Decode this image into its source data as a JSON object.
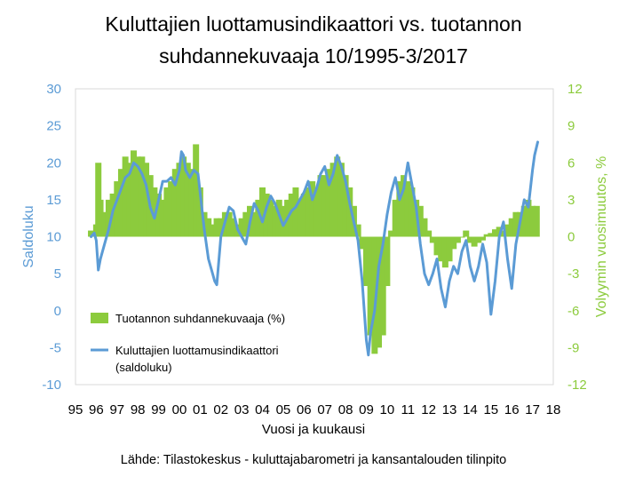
{
  "chart_data": {
    "type": "bar",
    "title_line1": "Kuluttajien luottamusindikaattori vs. tuotannon",
    "title_line2": "suhdannekuvaaja 10/1995-3/2017",
    "xlabel": "Vuosi ja kuukausi",
    "ylabel_left": "Saldoluku",
    "ylabel_right": "Volyymin vuosimuutos, %",
    "source": "Lähde: Tilastokeskus - kuluttajabarometri ja kansantalouden tilinpito",
    "x_ticks": [
      "95",
      "96",
      "97",
      "98",
      "99",
      "00",
      "01",
      "02",
      "03",
      "04",
      "05",
      "06",
      "07",
      "08",
      "09",
      "10",
      "11",
      "12",
      "13",
      "14",
      "15",
      "16",
      "17",
      "18"
    ],
    "y_left": {
      "min": -10,
      "max": 30,
      "ticks": [
        -10,
        -5,
        0,
        5,
        10,
        15,
        20,
        25,
        30
      ]
    },
    "y_right": {
      "min": -12,
      "max": 12,
      "ticks": [
        -12,
        -9,
        -6,
        -3,
        0,
        3,
        6,
        9,
        12
      ]
    },
    "legend_position": "center-left",
    "colors": {
      "bars": "#8CCB3D",
      "line": "#5B9BD5",
      "left_axis": "#5B9BD5",
      "right_axis": "#8CCB3D"
    },
    "series": [
      {
        "name": "Tuotannon suhdannekuvaaja (%)",
        "axis": "right",
        "kind": "bar",
        "points": [
          [
            1995.75,
            0.5
          ],
          [
            1996.0,
            1.0
          ],
          [
            1996.1,
            6.0
          ],
          [
            1996.2,
            3.0
          ],
          [
            1996.4,
            2.0
          ],
          [
            1996.6,
            3.0
          ],
          [
            1996.8,
            3.5
          ],
          [
            1997.0,
            4.5
          ],
          [
            1997.2,
            5.5
          ],
          [
            1997.4,
            6.5
          ],
          [
            1997.6,
            6.0
          ],
          [
            1997.8,
            7.0
          ],
          [
            1998.0,
            6.5
          ],
          [
            1998.2,
            6.5
          ],
          [
            1998.4,
            6.0
          ],
          [
            1998.6,
            5.0
          ],
          [
            1998.8,
            4.0
          ],
          [
            1999.0,
            3.5
          ],
          [
            1999.2,
            3.0
          ],
          [
            1999.4,
            4.0
          ],
          [
            1999.6,
            4.5
          ],
          [
            1999.8,
            5.5
          ],
          [
            2000.0,
            6.0
          ],
          [
            2000.2,
            6.5
          ],
          [
            2000.4,
            6.0
          ],
          [
            2000.6,
            5.5
          ],
          [
            2000.8,
            7.5
          ],
          [
            2001.0,
            4.0
          ],
          [
            2001.2,
            2.0
          ],
          [
            2001.4,
            1.5
          ],
          [
            2001.6,
            1.0
          ],
          [
            2001.8,
            1.5
          ],
          [
            2002.0,
            1.5
          ],
          [
            2002.2,
            2.0
          ],
          [
            2002.4,
            2.0
          ],
          [
            2002.6,
            1.5
          ],
          [
            2002.8,
            1.0
          ],
          [
            2003.0,
            1.5
          ],
          [
            2003.2,
            2.0
          ],
          [
            2003.4,
            2.5
          ],
          [
            2003.6,
            2.0
          ],
          [
            2003.8,
            3.0
          ],
          [
            2004.0,
            4.0
          ],
          [
            2004.2,
            3.5
          ],
          [
            2004.4,
            3.0
          ],
          [
            2004.6,
            2.5
          ],
          [
            2004.8,
            3.0
          ],
          [
            2005.0,
            2.5
          ],
          [
            2005.2,
            3.0
          ],
          [
            2005.4,
            3.5
          ],
          [
            2005.6,
            4.0
          ],
          [
            2005.8,
            3.0
          ],
          [
            2006.0,
            3.5
          ],
          [
            2006.2,
            4.0
          ],
          [
            2006.4,
            4.5
          ],
          [
            2006.6,
            4.0
          ],
          [
            2006.8,
            5.0
          ],
          [
            2007.0,
            5.0
          ],
          [
            2007.2,
            5.5
          ],
          [
            2007.4,
            6.0
          ],
          [
            2007.6,
            6.5
          ],
          [
            2007.8,
            6.0
          ],
          [
            2008.0,
            5.0
          ],
          [
            2008.2,
            4.0
          ],
          [
            2008.4,
            2.5
          ],
          [
            2008.6,
            1.0
          ],
          [
            2008.8,
            -1.0
          ],
          [
            2009.0,
            -4.0
          ],
          [
            2009.2,
            -8.0
          ],
          [
            2009.4,
            -9.5
          ],
          [
            2009.6,
            -9.0
          ],
          [
            2009.8,
            -8.0
          ],
          [
            2010.0,
            -4.0
          ],
          [
            2010.2,
            0.5
          ],
          [
            2010.4,
            3.0
          ],
          [
            2010.6,
            4.5
          ],
          [
            2010.8,
            5.0
          ],
          [
            2011.0,
            4.5
          ],
          [
            2011.2,
            4.0
          ],
          [
            2011.4,
            3.0
          ],
          [
            2011.6,
            2.5
          ],
          [
            2011.8,
            1.5
          ],
          [
            2012.0,
            0.5
          ],
          [
            2012.2,
            -0.5
          ],
          [
            2012.4,
            -1.5
          ],
          [
            2012.6,
            -2.0
          ],
          [
            2012.8,
            -2.5
          ],
          [
            2013.0,
            -2.0
          ],
          [
            2013.2,
            -1.0
          ],
          [
            2013.4,
            -0.5
          ],
          [
            2013.6,
            0.0
          ],
          [
            2013.8,
            0.5
          ],
          [
            2014.0,
            -0.5
          ],
          [
            2014.2,
            -0.8
          ],
          [
            2014.4,
            -0.5
          ],
          [
            2014.6,
            -0.3
          ],
          [
            2014.8,
            0.2
          ],
          [
            2015.0,
            0.3
          ],
          [
            2015.2,
            0.6
          ],
          [
            2015.4,
            0.8
          ],
          [
            2015.6,
            0.5
          ],
          [
            2015.8,
            1.0
          ],
          [
            2016.0,
            1.5
          ],
          [
            2016.2,
            2.0
          ],
          [
            2016.4,
            2.0
          ],
          [
            2016.6,
            2.5
          ],
          [
            2016.8,
            3.0
          ],
          [
            2017.0,
            2.5
          ],
          [
            2017.2,
            2.5
          ]
        ]
      },
      {
        "name": "Kuluttajien luottamusindikaattori (saldoluku)",
        "axis": "left",
        "kind": "line",
        "points": [
          [
            1995.75,
            10.0
          ],
          [
            1995.9,
            10.5
          ],
          [
            1996.0,
            9.5
          ],
          [
            1996.1,
            5.5
          ],
          [
            1996.2,
            7.0
          ],
          [
            1996.3,
            8.0
          ],
          [
            1996.4,
            9.0
          ],
          [
            1996.6,
            11.0
          ],
          [
            1996.8,
            13.5
          ],
          [
            1997.0,
            15.0
          ],
          [
            1997.2,
            16.5
          ],
          [
            1997.4,
            18.0
          ],
          [
            1997.6,
            18.5
          ],
          [
            1997.8,
            20.0
          ],
          [
            1998.0,
            19.5
          ],
          [
            1998.2,
            18.5
          ],
          [
            1998.4,
            17.0
          ],
          [
            1998.6,
            14.0
          ],
          [
            1998.8,
            12.5
          ],
          [
            1999.0,
            15.0
          ],
          [
            1999.2,
            17.5
          ],
          [
            1999.4,
            17.5
          ],
          [
            1999.6,
            18.0
          ],
          [
            1999.8,
            17.0
          ],
          [
            2000.0,
            19.0
          ],
          [
            2000.1,
            21.5
          ],
          [
            2000.2,
            21.0
          ],
          [
            2000.3,
            19.0
          ],
          [
            2000.5,
            18.0
          ],
          [
            2000.7,
            19.0
          ],
          [
            2000.9,
            18.5
          ],
          [
            2001.0,
            16.0
          ],
          [
            2001.2,
            11.0
          ],
          [
            2001.4,
            7.0
          ],
          [
            2001.6,
            5.0
          ],
          [
            2001.7,
            4.0
          ],
          [
            2001.8,
            3.5
          ],
          [
            2002.0,
            10.0
          ],
          [
            2002.2,
            12.0
          ],
          [
            2002.4,
            14.0
          ],
          [
            2002.6,
            13.5
          ],
          [
            2002.8,
            11.0
          ],
          [
            2003.0,
            10.0
          ],
          [
            2003.2,
            9.0
          ],
          [
            2003.4,
            12.0
          ],
          [
            2003.6,
            14.5
          ],
          [
            2003.8,
            13.5
          ],
          [
            2004.0,
            12.0
          ],
          [
            2004.2,
            14.0
          ],
          [
            2004.4,
            15.5
          ],
          [
            2004.6,
            14.5
          ],
          [
            2004.8,
            13.0
          ],
          [
            2005.0,
            11.5
          ],
          [
            2005.2,
            12.5
          ],
          [
            2005.4,
            13.5
          ],
          [
            2005.6,
            14.0
          ],
          [
            2005.8,
            15.0
          ],
          [
            2006.0,
            16.0
          ],
          [
            2006.2,
            17.5
          ],
          [
            2006.4,
            15.0
          ],
          [
            2006.6,
            16.5
          ],
          [
            2006.8,
            18.5
          ],
          [
            2007.0,
            19.5
          ],
          [
            2007.2,
            17.0
          ],
          [
            2007.4,
            18.5
          ],
          [
            2007.6,
            21.0
          ],
          [
            2007.8,
            19.5
          ],
          [
            2008.0,
            17.5
          ],
          [
            2008.2,
            14.5
          ],
          [
            2008.4,
            12.0
          ],
          [
            2008.6,
            9.5
          ],
          [
            2008.8,
            4.0
          ],
          [
            2009.0,
            -4.0
          ],
          [
            2009.1,
            -6.0
          ],
          [
            2009.2,
            -3.0
          ],
          [
            2009.4,
            0.0
          ],
          [
            2009.6,
            6.0
          ],
          [
            2009.8,
            9.0
          ],
          [
            2010.0,
            13.0
          ],
          [
            2010.2,
            16.0
          ],
          [
            2010.4,
            18.0
          ],
          [
            2010.6,
            15.0
          ],
          [
            2010.8,
            16.5
          ],
          [
            2011.0,
            20.0
          ],
          [
            2011.2,
            17.0
          ],
          [
            2011.4,
            14.0
          ],
          [
            2011.6,
            9.0
          ],
          [
            2011.8,
            5.0
          ],
          [
            2012.0,
            3.5
          ],
          [
            2012.2,
            5.0
          ],
          [
            2012.4,
            7.0
          ],
          [
            2012.6,
            3.0
          ],
          [
            2012.8,
            0.5
          ],
          [
            2013.0,
            4.0
          ],
          [
            2013.2,
            6.0
          ],
          [
            2013.4,
            5.0
          ],
          [
            2013.6,
            8.0
          ],
          [
            2013.8,
            9.5
          ],
          [
            2014.0,
            6.0
          ],
          [
            2014.2,
            4.0
          ],
          [
            2014.4,
            6.0
          ],
          [
            2014.6,
            9.0
          ],
          [
            2014.8,
            6.5
          ],
          [
            2015.0,
            -0.5
          ],
          [
            2015.2,
            4.0
          ],
          [
            2015.4,
            10.0
          ],
          [
            2015.6,
            12.0
          ],
          [
            2015.8,
            7.0
          ],
          [
            2016.0,
            3.0
          ],
          [
            2016.2,
            9.0
          ],
          [
            2016.4,
            12.0
          ],
          [
            2016.6,
            15.0
          ],
          [
            2016.8,
            14.0
          ],
          [
            2017.0,
            19.0
          ],
          [
            2017.1,
            21.0
          ],
          [
            2017.25,
            22.8
          ]
        ]
      }
    ]
  }
}
